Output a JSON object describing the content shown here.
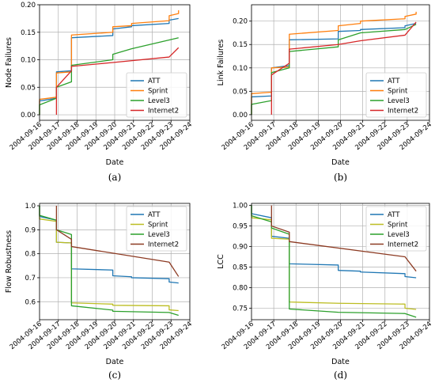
{
  "xcategories": [
    "2004-09-16",
    "2004-09-17",
    "2004-09-18",
    "2004-09-19",
    "2004-09-20",
    "2004-09-21",
    "2004-09-22",
    "2004-09-23",
    "2004-09-24"
  ],
  "chart_data": [
    {
      "type": "line",
      "panel": "(a)",
      "xlabel": "Date",
      "ylabel": "Node Failures",
      "ylim": [
        -0.01,
        0.2
      ],
      "yticks": [
        0.0,
        0.05,
        0.1,
        0.15,
        0.2
      ],
      "ytick_labels": [
        "0.00",
        "0.05",
        "0.10",
        "0.15",
        "0.20"
      ],
      "legend_position": "lower-right",
      "grid": true,
      "series": [
        {
          "name": "ATT",
          "color": "#1f77b4",
          "points": [
            [
              0,
              0.0
            ],
            [
              0,
              0.025
            ],
            [
              0.9,
              0.03
            ],
            [
              0.9,
              0.078
            ],
            [
              1.7,
              0.08
            ],
            [
              1.7,
              0.14
            ],
            [
              3.9,
              0.144
            ],
            [
              3.9,
              0.156
            ],
            [
              4.9,
              0.16
            ],
            [
              4.9,
              0.162
            ],
            [
              6.9,
              0.166
            ],
            [
              6.9,
              0.172
            ],
            [
              7.4,
              0.175
            ]
          ]
        },
        {
          "name": "Sprint",
          "color": "#ff7f0e",
          "points": [
            [
              0,
              0.0
            ],
            [
              0,
              0.028
            ],
            [
              0.9,
              0.032
            ],
            [
              0.9,
              0.076
            ],
            [
              1.7,
              0.078
            ],
            [
              1.7,
              0.145
            ],
            [
              3.9,
              0.15
            ],
            [
              3.9,
              0.16
            ],
            [
              4.9,
              0.162
            ],
            [
              4.9,
              0.166
            ],
            [
              6.9,
              0.171
            ],
            [
              6.9,
              0.18
            ],
            [
              7.4,
              0.184
            ],
            [
              7.4,
              0.19
            ]
          ]
        },
        {
          "name": "Level3",
          "color": "#2ca02c",
          "points": [
            [
              0,
              0.0
            ],
            [
              0,
              0.018
            ],
            [
              0.9,
              0.03
            ],
            [
              0.9,
              0.05
            ],
            [
              1.7,
              0.06
            ],
            [
              1.7,
              0.09
            ],
            [
              3.9,
              0.1
            ],
            [
              3.9,
              0.11
            ],
            [
              4.9,
              0.12
            ],
            [
              7.4,
              0.14
            ]
          ]
        },
        {
          "name": "Internet2",
          "color": "#d62728",
          "points": [
            [
              0.9,
              0.0
            ],
            [
              0.9,
              0.05
            ],
            [
              1.7,
              0.08
            ],
            [
              1.7,
              0.088
            ],
            [
              3.9,
              0.095
            ],
            [
              6.9,
              0.105
            ],
            [
              7.4,
              0.122
            ]
          ]
        }
      ]
    },
    {
      "type": "line",
      "panel": "(b)",
      "xlabel": "Date",
      "ylabel": "Link Failures",
      "ylim": [
        -0.012,
        0.235
      ],
      "yticks": [
        0.0,
        0.05,
        0.1,
        0.15,
        0.2
      ],
      "ytick_labels": [
        "0.00",
        "0.05",
        "0.10",
        "0.15",
        "0.20"
      ],
      "legend_position": "lower-right",
      "grid": true,
      "series": [
        {
          "name": "ATT",
          "color": "#1f77b4",
          "points": [
            [
              0,
              0.0
            ],
            [
              0,
              0.038
            ],
            [
              0.9,
              0.04
            ],
            [
              0.9,
              0.1
            ],
            [
              1.7,
              0.105
            ],
            [
              1.7,
              0.16
            ],
            [
              3.9,
              0.162
            ],
            [
              3.9,
              0.178
            ],
            [
              4.9,
              0.18
            ],
            [
              4.9,
              0.182
            ],
            [
              6.9,
              0.186
            ],
            [
              6.9,
              0.19
            ],
            [
              7.4,
              0.195
            ]
          ]
        },
        {
          "name": "Sprint",
          "color": "#ff7f0e",
          "points": [
            [
              0,
              0.0
            ],
            [
              0,
              0.045
            ],
            [
              0.9,
              0.048
            ],
            [
              0.9,
              0.1
            ],
            [
              1.7,
              0.102
            ],
            [
              1.7,
              0.172
            ],
            [
              3.9,
              0.18
            ],
            [
              3.9,
              0.19
            ],
            [
              4.9,
              0.195
            ],
            [
              4.9,
              0.2
            ],
            [
              6.9,
              0.205
            ],
            [
              6.9,
              0.21
            ],
            [
              7.4,
              0.215
            ],
            [
              7.4,
              0.22
            ]
          ]
        },
        {
          "name": "Level3",
          "color": "#2ca02c",
          "points": [
            [
              0,
              0.0
            ],
            [
              0,
              0.022
            ],
            [
              0.9,
              0.03
            ],
            [
              0.9,
              0.09
            ],
            [
              1.7,
              0.1
            ],
            [
              1.7,
              0.135
            ],
            [
              3.9,
              0.145
            ],
            [
              3.9,
              0.16
            ],
            [
              4.9,
              0.175
            ],
            [
              6.9,
              0.182
            ],
            [
              7.4,
              0.193
            ]
          ]
        },
        {
          "name": "Internet2",
          "color": "#d62728",
          "points": [
            [
              0.9,
              0.0
            ],
            [
              0.9,
              0.085
            ],
            [
              1.7,
              0.11
            ],
            [
              1.7,
              0.14
            ],
            [
              3.9,
              0.15
            ],
            [
              4.9,
              0.158
            ],
            [
              6.9,
              0.17
            ],
            [
              7.4,
              0.198
            ]
          ]
        }
      ]
    },
    {
      "type": "line",
      "panel": "(c)",
      "xlabel": "Date",
      "ylabel": "Flow Robustness",
      "ylim": [
        0.525,
        1.01
      ],
      "yticks": [
        0.6,
        0.7,
        0.8,
        0.9,
        1.0
      ],
      "ytick_labels": [
        "0.6",
        "0.7",
        "0.8",
        "0.9",
        "1.0"
      ],
      "legend_position": "upper-right",
      "grid": true,
      "series": [
        {
          "name": "ATT",
          "color": "#1f77b4",
          "points": [
            [
              0,
              1.0
            ],
            [
              0,
              0.955
            ],
            [
              0.9,
              0.94
            ],
            [
              0.9,
              0.848
            ],
            [
              1.7,
              0.845
            ],
            [
              1.7,
              0.737
            ],
            [
              3.9,
              0.732
            ],
            [
              3.9,
              0.708
            ],
            [
              4.9,
              0.704
            ],
            [
              4.9,
              0.7
            ],
            [
              6.9,
              0.696
            ],
            [
              6.9,
              0.682
            ],
            [
              7.4,
              0.678
            ]
          ]
        },
        {
          "name": "Sprint",
          "color": "#bcbd22",
          "points": [
            [
              0,
              1.0
            ],
            [
              0,
              0.945
            ],
            [
              0.9,
              0.935
            ],
            [
              0.9,
              0.848
            ],
            [
              1.7,
              0.845
            ],
            [
              1.7,
              0.595
            ],
            [
              3.9,
              0.59
            ],
            [
              3.9,
              0.585
            ],
            [
              6.9,
              0.583
            ],
            [
              6.9,
              0.566
            ],
            [
              7.4,
              0.563
            ]
          ]
        },
        {
          "name": "Level3",
          "color": "#2ca02c",
          "points": [
            [
              0,
              1.0
            ],
            [
              0,
              0.96
            ],
            [
              0.9,
              0.94
            ],
            [
              0.9,
              0.9
            ],
            [
              1.7,
              0.88
            ],
            [
              1.7,
              0.583
            ],
            [
              3.9,
              0.565
            ],
            [
              3.9,
              0.56
            ],
            [
              6.9,
              0.555
            ],
            [
              7.4,
              0.543
            ]
          ]
        },
        {
          "name": "Internet2",
          "color": "#8c3a22",
          "points": [
            [
              0.9,
              1.0
            ],
            [
              0.9,
              0.9
            ],
            [
              1.7,
              0.86
            ],
            [
              1.7,
              0.83
            ],
            [
              6.9,
              0.765
            ],
            [
              7.4,
              0.705
            ]
          ]
        }
      ]
    },
    {
      "type": "line",
      "panel": "(d)",
      "xlabel": "Date",
      "ylabel": "LCC",
      "ylim": [
        0.722,
        1.005
      ],
      "yticks": [
        0.75,
        0.8,
        0.85,
        0.9,
        0.95,
        1.0
      ],
      "ytick_labels": [
        "0.75",
        "0.80",
        "0.85",
        "0.90",
        "0.95",
        "1.00"
      ],
      "legend_position": "upper-right",
      "grid": true,
      "series": [
        {
          "name": "ATT",
          "color": "#1f77b4",
          "points": [
            [
              0,
              1.0
            ],
            [
              0,
              0.98
            ],
            [
              0.9,
              0.97
            ],
            [
              0.9,
              0.925
            ],
            [
              1.7,
              0.92
            ],
            [
              1.7,
              0.858
            ],
            [
              3.9,
              0.855
            ],
            [
              3.9,
              0.842
            ],
            [
              4.9,
              0.84
            ],
            [
              4.9,
              0.838
            ],
            [
              6.9,
              0.834
            ],
            [
              6.9,
              0.827
            ],
            [
              7.4,
              0.824
            ]
          ]
        },
        {
          "name": "Sprint",
          "color": "#bcbd22",
          "points": [
            [
              0,
              1.0
            ],
            [
              0,
              0.97
            ],
            [
              0.9,
              0.965
            ],
            [
              0.9,
              0.92
            ],
            [
              1.7,
              0.918
            ],
            [
              1.7,
              0.765
            ],
            [
              3.9,
              0.762
            ],
            [
              6.9,
              0.76
            ],
            [
              6.9,
              0.75
            ],
            [
              7.4,
              0.747
            ]
          ]
        },
        {
          "name": "Level3",
          "color": "#2ca02c",
          "points": [
            [
              0,
              1.0
            ],
            [
              0,
              0.975
            ],
            [
              0.9,
              0.96
            ],
            [
              0.9,
              0.945
            ],
            [
              1.7,
              0.93
            ],
            [
              1.7,
              0.748
            ],
            [
              3.9,
              0.74
            ],
            [
              6.9,
              0.737
            ],
            [
              7.4,
              0.728
            ]
          ]
        },
        {
          "name": "Internet2",
          "color": "#8c3a22",
          "points": [
            [
              0.9,
              1.0
            ],
            [
              0.9,
              0.95
            ],
            [
              1.7,
              0.935
            ],
            [
              1.7,
              0.912
            ],
            [
              6.9,
              0.875
            ],
            [
              7.4,
              0.84
            ]
          ]
        }
      ]
    }
  ]
}
